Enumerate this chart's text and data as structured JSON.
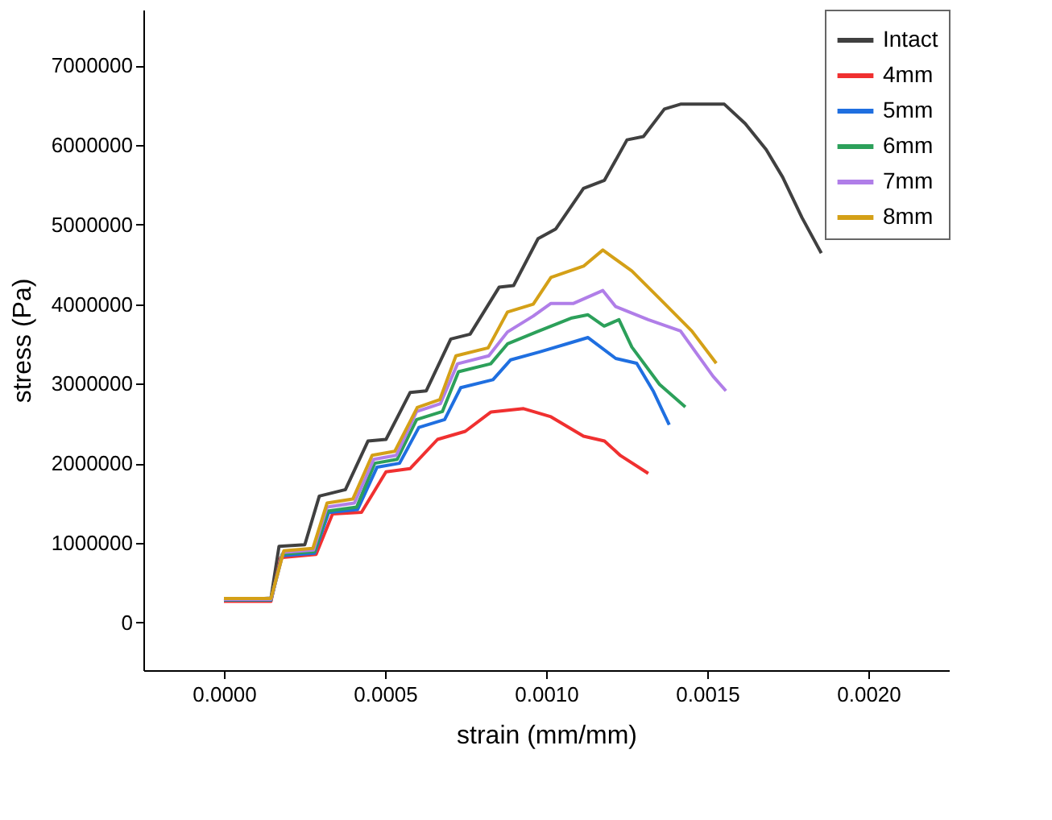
{
  "chart_data": {
    "type": "line",
    "xlabel": "strain (mm/mm)",
    "ylabel": "stress (Pa)",
    "xlim": [
      -0.00025,
      0.00225
    ],
    "ylim": [
      -600000,
      7700000
    ],
    "xticks": [
      {
        "value": 0,
        "label": "0.0000"
      },
      {
        "value": 0.0005,
        "label": "0.0005"
      },
      {
        "value": 0.001,
        "label": "0.0010"
      },
      {
        "value": 0.0015,
        "label": "0.0015"
      },
      {
        "value": 0.002,
        "label": "0.0020"
      }
    ],
    "yticks": [
      0,
      1000000,
      2000000,
      3000000,
      4000000,
      5000000,
      6000000,
      7000000
    ],
    "grid": false,
    "legend": "top right",
    "marker": "none",
    "line_style": "solid",
    "series": [
      {
        "name": "Intact",
        "color": "#404040",
        "x": [
          0,
          0.000146,
          0.000171,
          0.000251,
          0.000296,
          0.000377,
          0.000447,
          0.000503,
          0.000578,
          0.000628,
          0.000704,
          0.000764,
          0.000854,
          0.000899,
          0.000975,
          0.00103,
          0.001116,
          0.001181,
          0.001251,
          0.001302,
          0.001367,
          0.001417,
          0.001503,
          0.001553,
          0.001618,
          0.001683,
          0.001734,
          0.001794,
          0.001854
        ],
        "values": [
          270000,
          305000,
          956000,
          977000,
          1587000,
          1669000,
          2279000,
          2300000,
          2890000,
          2910000,
          3561000,
          3622000,
          4212000,
          4233000,
          4823000,
          4945000,
          5454000,
          5556000,
          6064000,
          6105000,
          6451000,
          6512000,
          6512000,
          6512000,
          6268000,
          5942000,
          5596000,
          5087000,
          4640000
        ]
      },
      {
        "name": "4mm",
        "color": "#f03030",
        "x": [
          0,
          0.000146,
          0.000176,
          0.000286,
          0.000337,
          0.000427,
          0.000503,
          0.000578,
          0.000663,
          0.000749,
          0.000829,
          0.00093,
          0.001015,
          0.001116,
          0.001181,
          0.001231,
          0.001317
        ],
        "values": [
          265000,
          265000,
          814000,
          855000,
          1363000,
          1384000,
          1893000,
          1933000,
          2300000,
          2401000,
          2645000,
          2686000,
          2584000,
          2340000,
          2279000,
          2096000,
          1872000
        ]
      },
      {
        "name": "5mm",
        "color": "#1f6fe0",
        "x": [
          0,
          0.000146,
          0.000181,
          0.000281,
          0.000325,
          0.000415,
          0.000475,
          0.000545,
          0.000605,
          0.000685,
          0.000735,
          0.000835,
          0.00089,
          0.00098,
          0.00108,
          0.00113,
          0.001216,
          0.001281,
          0.001332,
          0.001382
        ],
        "values": [
          280000,
          280000,
          840000,
          870000,
          1380000,
          1420000,
          1950000,
          2000000,
          2450000,
          2550000,
          2950000,
          3050000,
          3300000,
          3400000,
          3520000,
          3580000,
          3317000,
          3256000,
          2910000,
          2483000
        ]
      },
      {
        "name": "6mm",
        "color": "#2ca05a",
        "x": [
          0,
          0.000146,
          0.000181,
          0.000281,
          0.000322,
          0.000412,
          0.000468,
          0.000538,
          0.000598,
          0.000678,
          0.000728,
          0.000828,
          0.00088,
          0.00097,
          0.00108,
          0.00113,
          0.00118,
          0.001226,
          0.001266,
          0.001352,
          0.001432
        ],
        "values": [
          285000,
          285000,
          860000,
          890000,
          1400000,
          1450000,
          2000000,
          2050000,
          2550000,
          2650000,
          3150000,
          3250000,
          3500000,
          3650000,
          3826000,
          3866000,
          3724000,
          3805000,
          3460000,
          2991000,
          2707000
        ]
      },
      {
        "name": "7mm",
        "color": "#b07ee8",
        "x": [
          0,
          0.000146,
          0.000184,
          0.000278,
          0.00032,
          0.000405,
          0.000465,
          0.000535,
          0.000598,
          0.000672,
          0.000725,
          0.000822,
          0.00088,
          0.00096,
          0.001015,
          0.001085,
          0.001176,
          0.001216,
          0.001317,
          0.001417,
          0.001518,
          0.001558
        ],
        "values": [
          290000,
          290000,
          880000,
          910000,
          1450000,
          1500000,
          2050000,
          2100000,
          2650000,
          2750000,
          3250000,
          3350000,
          3650000,
          3850000,
          4009000,
          4009000,
          4171000,
          3968000,
          3805000,
          3663000,
          3093000,
          2910000
        ]
      },
      {
        "name": "8mm",
        "color": "#d4a017",
        "x": [
          0,
          0.000146,
          0.000186,
          0.000276,
          0.00032,
          0.0004,
          0.00046,
          0.00053,
          0.0006,
          0.00067,
          0.00072,
          0.00082,
          0.00088,
          0.00096,
          0.001015,
          0.001116,
          0.001176,
          0.001266,
          0.001352,
          0.001452,
          0.001528
        ],
        "values": [
          300000,
          300000,
          900000,
          930000,
          1500000,
          1550000,
          2100000,
          2150000,
          2700000,
          2800000,
          3350000,
          3450000,
          3900000,
          4000000,
          4335000,
          4477000,
          4680000,
          4416000,
          4070000,
          3663000,
          3256000
        ]
      }
    ]
  }
}
